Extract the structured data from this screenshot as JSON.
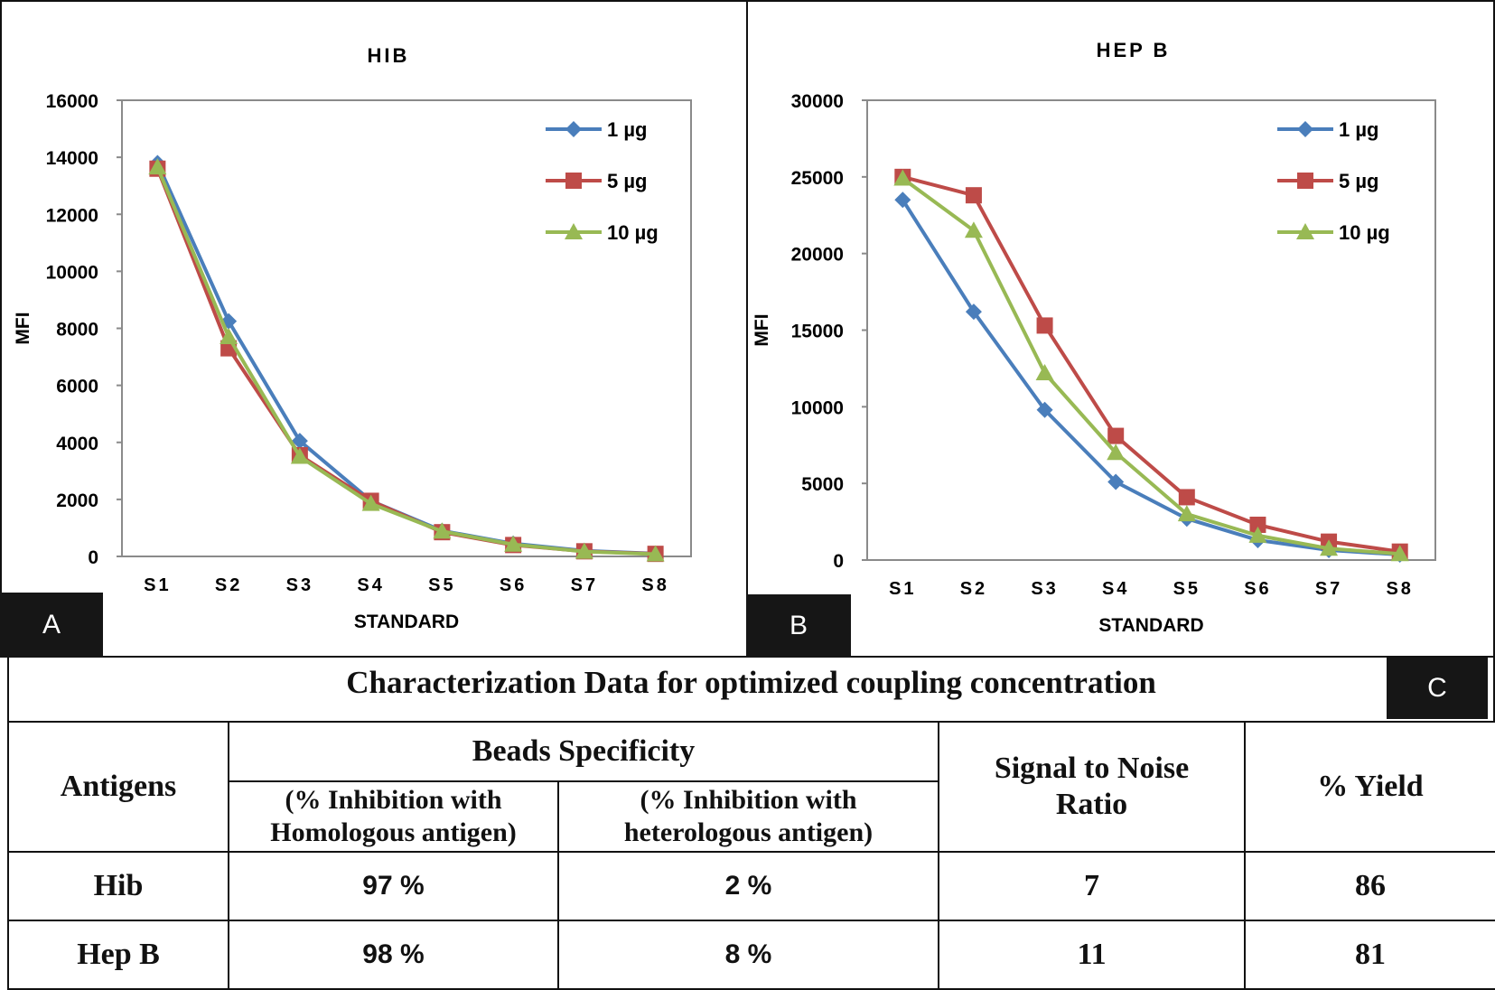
{
  "chart_data": [
    {
      "panel": "A",
      "type": "line",
      "title": "HIB",
      "xlabel": "STANDARD",
      "ylabel": "MFI",
      "ylim": [
        0,
        16000
      ],
      "yticks": [
        0,
        2000,
        4000,
        6000,
        8000,
        10000,
        12000,
        14000,
        16000
      ],
      "categories": [
        "S1",
        "S2",
        "S3",
        "S4",
        "S5",
        "S6",
        "S7",
        "S8"
      ],
      "legend_position": "top-right",
      "series": [
        {
          "name": "1 µg",
          "color": "#4a7ebb",
          "marker": "diamond",
          "values": [
            13800,
            8250,
            4050,
            1950,
            900,
            450,
            200,
            100
          ]
        },
        {
          "name": "5 µg",
          "color": "#be4b48",
          "marker": "square",
          "values": [
            13600,
            7300,
            3550,
            1950,
            850,
            400,
            180,
            90
          ]
        },
        {
          "name": "10 µg",
          "color": "#98b954",
          "marker": "triangle",
          "values": [
            13650,
            7700,
            3500,
            1850,
            880,
            420,
            170,
            80
          ]
        }
      ]
    },
    {
      "panel": "B",
      "type": "line",
      "title": "HEP B",
      "xlabel": "STANDARD",
      "ylabel": "MFI",
      "ylim": [
        0,
        30000
      ],
      "yticks": [
        0,
        5000,
        10000,
        15000,
        20000,
        25000,
        30000
      ],
      "categories": [
        "S1",
        "S2",
        "S3",
        "S4",
        "S5",
        "S6",
        "S7",
        "S8"
      ],
      "legend_position": "top-right",
      "series": [
        {
          "name": "1 µg",
          "color": "#4a7ebb",
          "marker": "diamond",
          "values": [
            23500,
            16200,
            9800,
            5100,
            2700,
            1300,
            650,
            350
          ]
        },
        {
          "name": "5 µg",
          "color": "#be4b48",
          "marker": "square",
          "values": [
            25000,
            23800,
            15300,
            8100,
            4100,
            2300,
            1200,
            550
          ]
        },
        {
          "name": "10 µg",
          "color": "#98b954",
          "marker": "triangle",
          "values": [
            24900,
            21500,
            12200,
            7000,
            3000,
            1600,
            750,
            400
          ]
        }
      ]
    }
  ],
  "panel_labels": {
    "a": "A",
    "b": "B",
    "c": "C"
  },
  "table": {
    "title": "Characterization Data for optimized coupling concentration",
    "headers": {
      "antigens": "Antigens",
      "beads_specificity": "Beads Specificity",
      "homologous_line1": "(% Inhibition with",
      "homologous_line2": "Homologous antigen)",
      "heterologous_line1": "(% Inhibition with",
      "heterologous_line2": "heterologous antigen)",
      "snr_line1": "Signal to Noise",
      "snr_line2": "Ratio",
      "yield": "% Yield"
    },
    "rows": [
      {
        "antigen": "Hib",
        "homologous": "97 %",
        "heterologous": "2 %",
        "snr": "7",
        "yield": "86"
      },
      {
        "antigen": "Hep B",
        "homologous": "98 %",
        "heterologous": "8 %",
        "snr": "11",
        "yield": "81"
      }
    ]
  }
}
